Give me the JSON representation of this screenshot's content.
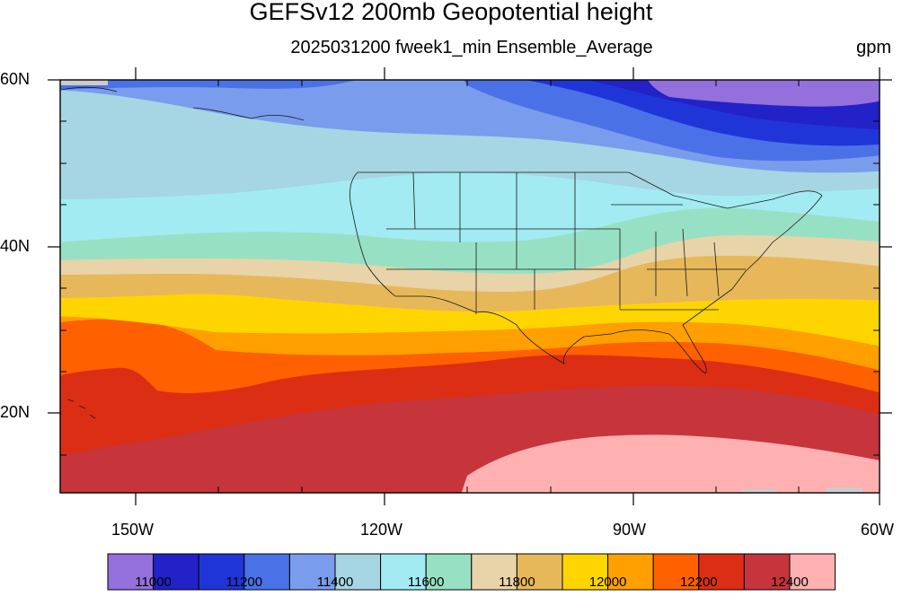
{
  "title": "GEFSv12 200mb Geopotential height",
  "subtitle": "2025031200 fweek1_min Ensemble_Average",
  "units": "gpm",
  "lat_labels": [
    "60N",
    "40N",
    "20N"
  ],
  "lon_labels": [
    "150W",
    "120W",
    "90W",
    "60W"
  ],
  "colorbar": {
    "colors": [
      "#9370db",
      "#2222c8",
      "#2035d8",
      "#4a72e6",
      "#7a9cec",
      "#a6d5e3",
      "#a2ebf2",
      "#98e0c4",
      "#e8d4a8",
      "#e6b85a",
      "#ffd500",
      "#ffa000",
      "#ff6000",
      "#dc2e14",
      "#c6343c",
      "#ffb0b0"
    ],
    "labels": [
      "11000",
      "11200",
      "11400",
      "11600",
      "11800",
      "12000",
      "12200",
      "12400"
    ]
  }
}
